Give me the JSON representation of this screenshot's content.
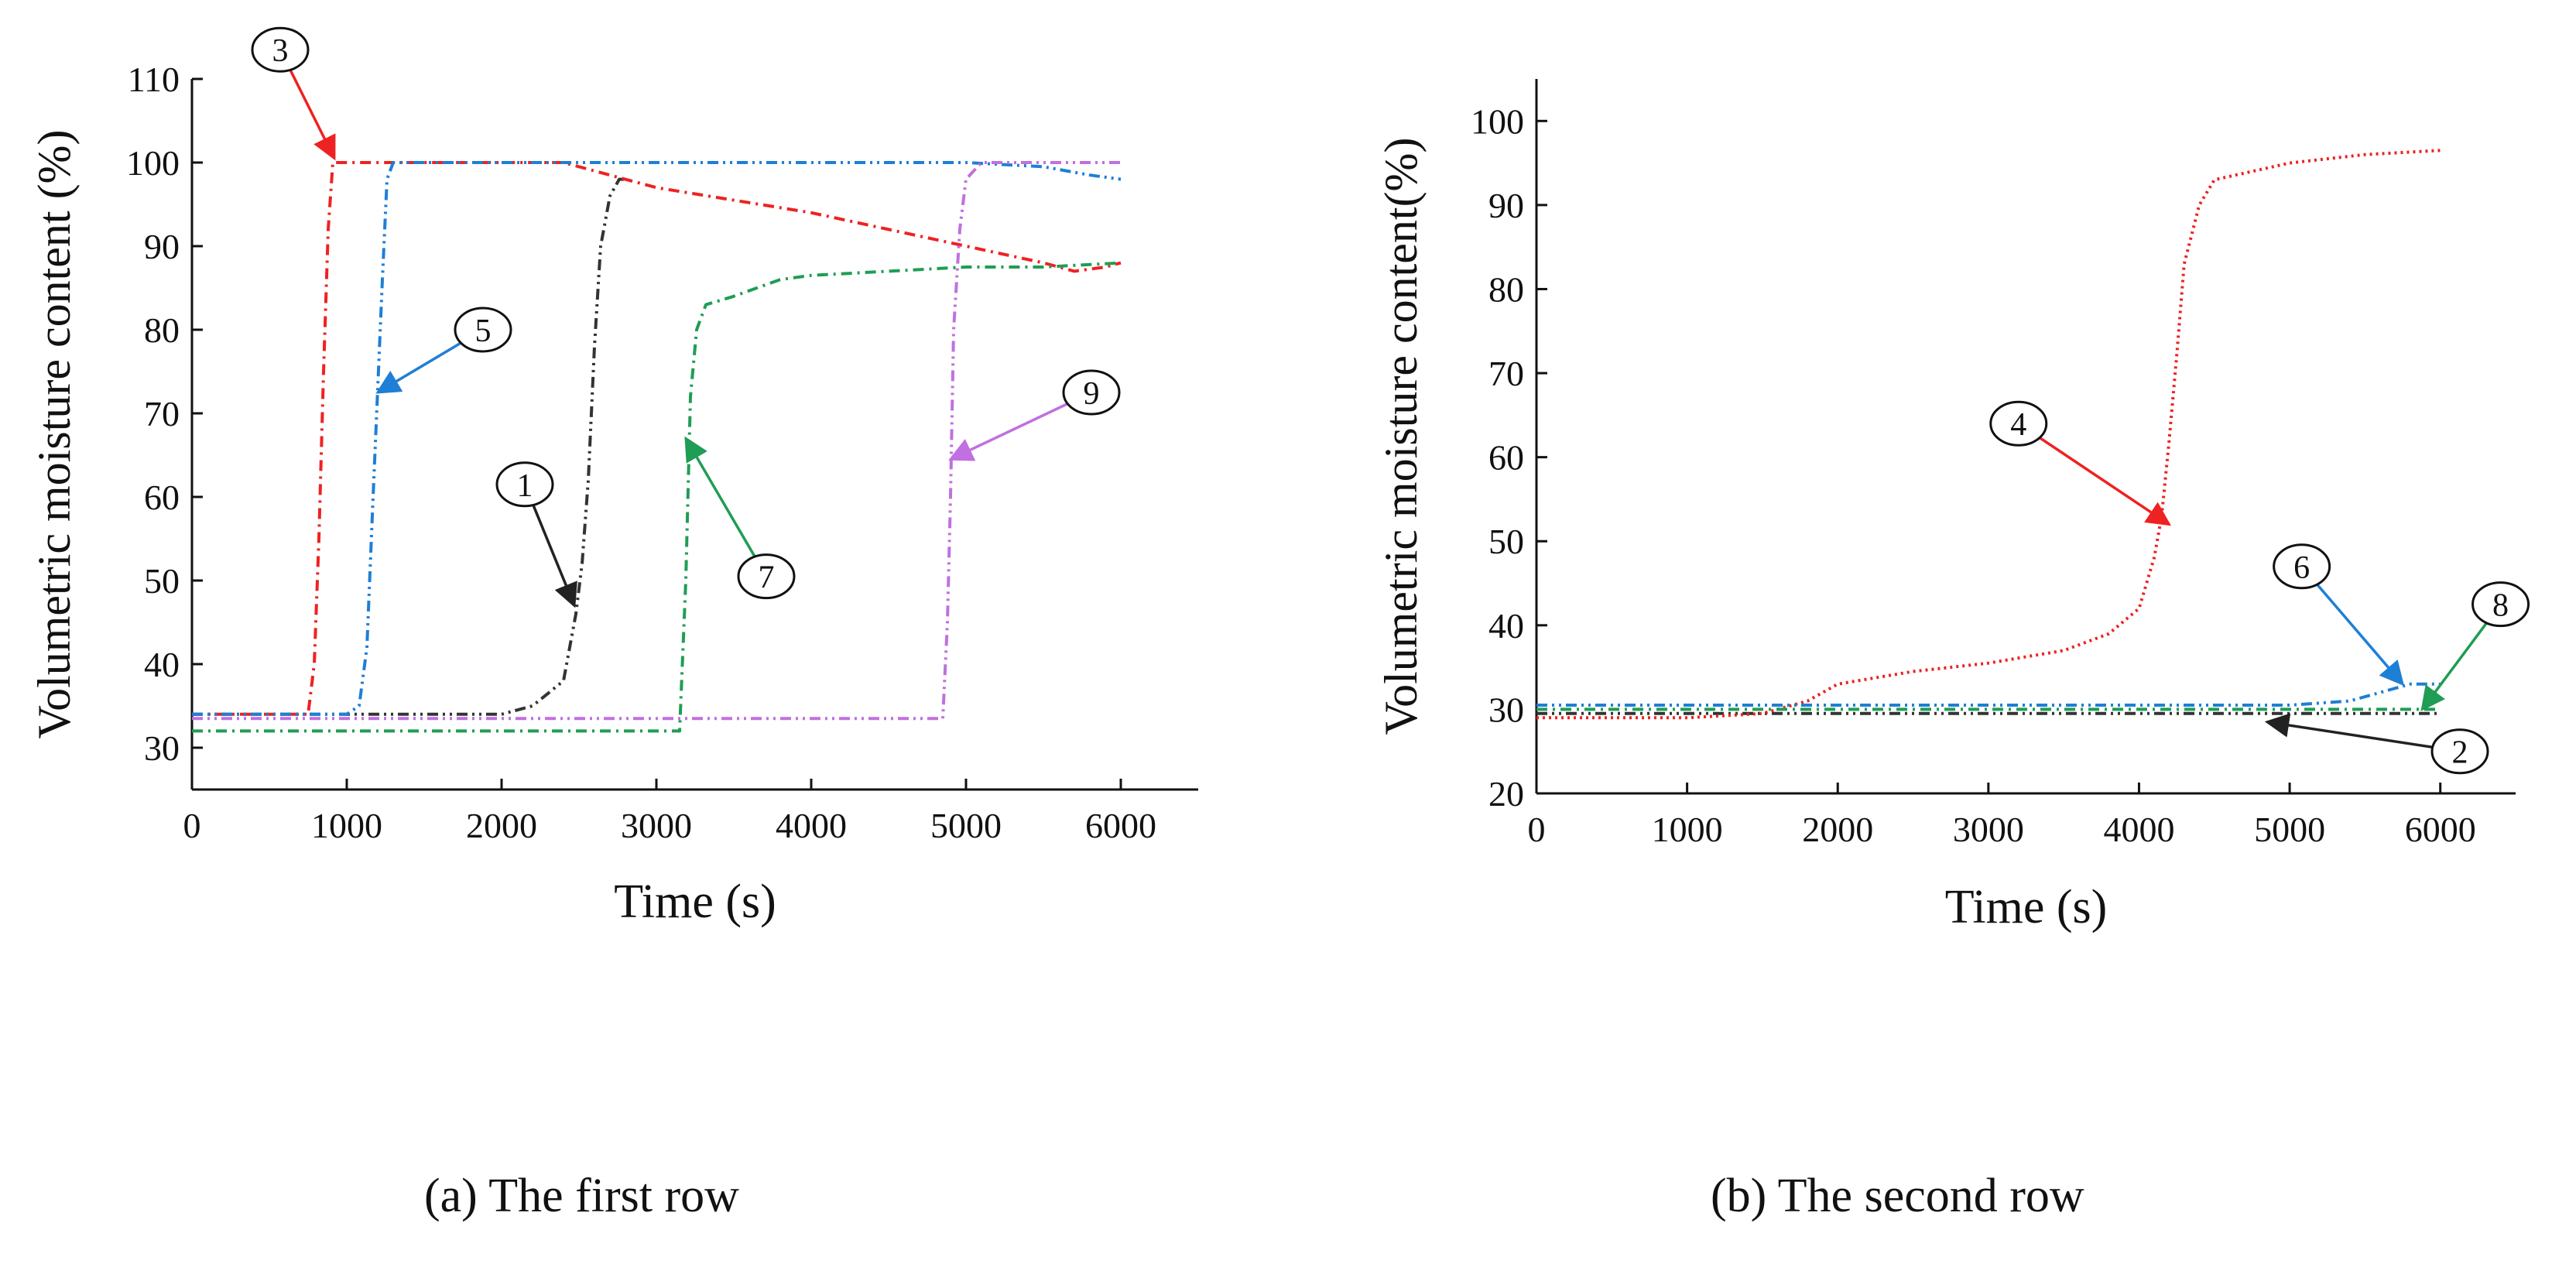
{
  "chart_data": [
    {
      "type": "line",
      "caption": "(a) The first row",
      "xlabel": "Time (s)",
      "ylabel": "Volumetric moisture content (%)",
      "xlim": [
        0,
        6500
      ],
      "ylim": [
        25,
        110
      ],
      "xticks": [
        0,
        1000,
        2000,
        3000,
        4000,
        5000,
        6000
      ],
      "yticks": [
        30,
        40,
        50,
        60,
        70,
        80,
        90,
        100,
        110
      ],
      "grid": false,
      "legend": "none",
      "series": [
        {
          "id": "1",
          "color": "#333333",
          "dash": "dashdotdot",
          "x": [
            0,
            1000,
            2000,
            2200,
            2400,
            2480,
            2520,
            2560,
            2600,
            2640,
            2700,
            2760,
            2800
          ],
          "y": [
            34,
            34,
            34,
            35,
            38,
            46,
            52,
            62,
            78,
            90,
            96,
            98,
            98
          ]
        },
        {
          "id": "3",
          "color": "#ee2222",
          "dash": "dashdot",
          "x": [
            0,
            750,
            790,
            820,
            850,
            880,
            910,
            950,
            1000,
            2400,
            3000,
            4000,
            5000,
            5500,
            5700,
            5900,
            6000
          ],
          "y": [
            34,
            34,
            40,
            55,
            75,
            92,
            100,
            100,
            100,
            100,
            97,
            94,
            90,
            88,
            87,
            87.5,
            88
          ]
        },
        {
          "id": "5",
          "color": "#1e7fd6",
          "dash": "dashdotdot",
          "x": [
            0,
            1000,
            1080,
            1130,
            1170,
            1200,
            1230,
            1260,
            1300,
            2000,
            3000,
            4000,
            5000,
            5500,
            5800,
            6000
          ],
          "y": [
            34,
            34,
            35,
            42,
            60,
            73,
            86,
            98,
            100,
            100,
            100,
            100,
            100,
            99.5,
            98.5,
            98
          ]
        },
        {
          "id": "7",
          "color": "#1f9d55",
          "dash": "dashdot",
          "x": [
            0,
            1000,
            2000,
            3150,
            3190,
            3220,
            3260,
            3320,
            3500,
            3800,
            4000,
            4500,
            5000,
            5500,
            6000
          ],
          "y": [
            32,
            32,
            32,
            32,
            50,
            72,
            80,
            83,
            84,
            86,
            86.5,
            87,
            87.5,
            87.5,
            88
          ]
        },
        {
          "id": "9",
          "color": "#c070e0",
          "dash": "dashdotdot",
          "x": [
            0,
            1000,
            2000,
            3000,
            4000,
            4850,
            4880,
            4900,
            4920,
            4960,
            5000,
            5100,
            5500,
            6000
          ],
          "y": [
            33.5,
            33.5,
            33.5,
            33.5,
            33.5,
            33.5,
            45,
            60,
            80,
            92,
            98,
            100,
            100,
            100
          ]
        }
      ],
      "annotations": [
        {
          "label": "3",
          "x": 570,
          "y": 113.5,
          "arrow_to": [
            920,
            100.5
          ],
          "color": "#ee2222"
        },
        {
          "label": "5",
          "x": 1880,
          "y": 80,
          "arrow_to": [
            1200,
            72.5
          ],
          "color": "#1e7fd6"
        },
        {
          "label": "1",
          "x": 2150,
          "y": 61.5,
          "arrow_to": [
            2470,
            47
          ],
          "color": "#222222"
        },
        {
          "label": "7",
          "x": 3710,
          "y": 50.5,
          "arrow_to": [
            3190,
            67
          ],
          "color": "#1f9d55"
        },
        {
          "label": "9",
          "x": 5810,
          "y": 72.5,
          "arrow_to": [
            4900,
            64.5
          ],
          "color": "#c070e0"
        }
      ]
    },
    {
      "type": "line",
      "caption": "(b) The second row",
      "xlabel": "Time (s)",
      "ylabel": "Volumetric moisture content(%)",
      "xlim": [
        0,
        6500
      ],
      "ylim": [
        20,
        105
      ],
      "xticks": [
        0,
        1000,
        2000,
        3000,
        4000,
        5000,
        6000
      ],
      "yticks": [
        20,
        30,
        40,
        50,
        60,
        70,
        80,
        90,
        100
      ],
      "grid": false,
      "legend": "none",
      "series": [
        {
          "id": "2",
          "color": "#333333",
          "dash": "dashdotdot",
          "x": [
            0,
            1000,
            2000,
            3000,
            4000,
            5000,
            6000
          ],
          "y": [
            29.5,
            29.5,
            29.5,
            29.5,
            29.5,
            29.5,
            29.5
          ]
        },
        {
          "id": "4",
          "color": "#ee2222",
          "dash": "dots",
          "x": [
            0,
            1000,
            1500,
            1800,
            2000,
            2500,
            3000,
            3500,
            3800,
            4000,
            4100,
            4150,
            4200,
            4250,
            4300,
            4400,
            4500,
            5000,
            5500,
            6000
          ],
          "y": [
            29,
            29,
            29.5,
            31,
            33,
            34.5,
            35.5,
            37,
            39,
            42,
            48,
            53,
            62,
            72,
            83,
            90,
            93,
            95,
            96,
            96.5
          ]
        },
        {
          "id": "6",
          "color": "#1e7fd6",
          "dash": "dashdotdot",
          "x": [
            0,
            1000,
            2000,
            3000,
            4000,
            5000,
            5400,
            5600,
            5800,
            6000
          ],
          "y": [
            30.5,
            30.5,
            30.5,
            30.5,
            30.5,
            30.5,
            31,
            32,
            33,
            33
          ]
        },
        {
          "id": "8",
          "color": "#1f9d55",
          "dash": "dashdot",
          "x": [
            0,
            1000,
            2000,
            3000,
            4000,
            5000,
            5500,
            6000
          ],
          "y": [
            30,
            30,
            30,
            30,
            30,
            30,
            30,
            30
          ]
        }
      ],
      "annotations": [
        {
          "label": "4",
          "x": 3200,
          "y": 64,
          "arrow_to": [
            4200,
            52
          ],
          "color": "#ee2222"
        },
        {
          "label": "6",
          "x": 5080,
          "y": 47,
          "arrow_to": [
            5750,
            33
          ],
          "color": "#1e7fd6"
        },
        {
          "label": "8",
          "x": 6400,
          "y": 42.5,
          "arrow_to": [
            5880,
            30
          ],
          "color": "#1f9d55"
        },
        {
          "label": "2",
          "x": 6130,
          "y": 25,
          "arrow_to": [
            4850,
            28.5
          ],
          "color": "#222222"
        }
      ]
    }
  ]
}
